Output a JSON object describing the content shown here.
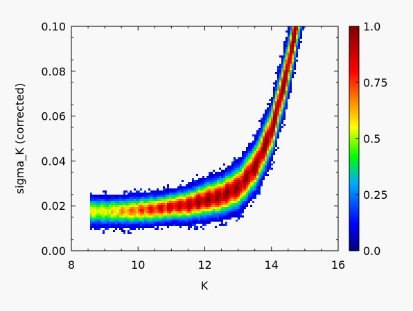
{
  "chart_data": {
    "type": "heatmap",
    "xlabel": "K",
    "ylabel": "sigma_K (corrected)",
    "xlim": [
      8,
      16
    ],
    "ylim": [
      0.0,
      0.1
    ],
    "xticks": [
      "8",
      "10",
      "12",
      "14",
      "16"
    ],
    "yticks": [
      "0.00",
      "0.02",
      "0.04",
      "0.06",
      "0.08",
      "0.10"
    ],
    "colorbar": {
      "range": [
        0.0,
        1.0
      ],
      "ticks": [
        "1.0",
        "0.75",
        "0.5",
        "0.25",
        "0.0"
      ],
      "tick_values": [
        1.0,
        0.75,
        0.5,
        0.25,
        0.0
      ],
      "colormap": "rainbow",
      "colors": [
        "#00007f",
        "#0000ff",
        "#00ff00",
        "#ffff00",
        "#ff7f00",
        "#ff0000",
        "#7f0000"
      ]
    },
    "ridge": {
      "description_points": [
        {
          "K": 8.6,
          "sigma": 0.018
        },
        {
          "K": 9.5,
          "sigma": 0.018
        },
        {
          "K": 10.5,
          "sigma": 0.019
        },
        {
          "K": 11.5,
          "sigma": 0.021
        },
        {
          "K": 12.5,
          "sigma": 0.025
        },
        {
          "K": 13.0,
          "sigma": 0.029
        },
        {
          "K": 13.5,
          "sigma": 0.038
        },
        {
          "K": 14.0,
          "sigma": 0.055
        },
        {
          "K": 14.4,
          "sigma": 0.078
        },
        {
          "K": 14.7,
          "sigma": 0.1
        }
      ]
    }
  }
}
